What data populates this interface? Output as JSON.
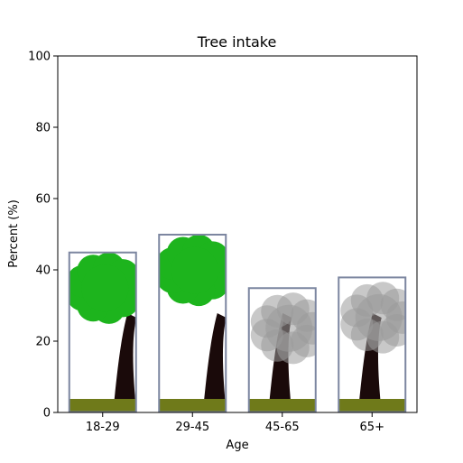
{
  "chart_data": {
    "type": "bar",
    "title": "Tree intake",
    "xlabel": "Age",
    "ylabel": "Percent (%)",
    "categories": [
      "18-29",
      "29-45",
      "45-65",
      "65+"
    ],
    "values": [
      45,
      50,
      35,
      38
    ],
    "ylim": [
      0,
      100
    ],
    "yticks": [
      0,
      20,
      40,
      60,
      80,
      100
    ],
    "grid": false,
    "legend": "none",
    "bar_style": "tree pictogram fill",
    "colors": {
      "foliage_green": "#1db41d",
      "foliage_gray": "#9a9a9a",
      "trunk": "#1a0a0a",
      "grass": "#6f7a1a",
      "frame": "#7c86a0"
    }
  }
}
